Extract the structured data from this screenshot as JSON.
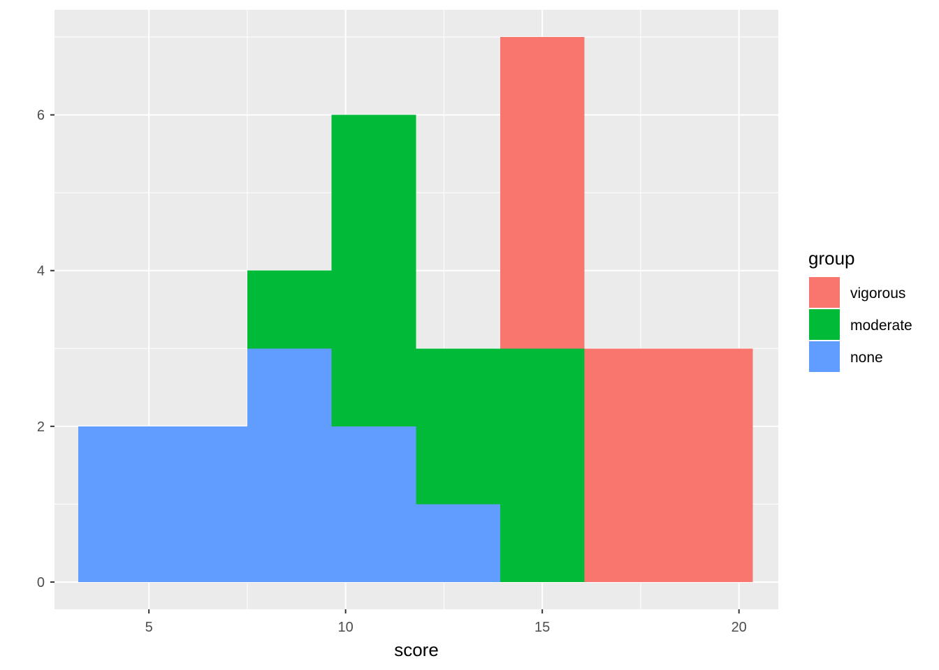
{
  "chart_data": {
    "type": "bar",
    "subtype": "stacked-histogram",
    "title": "",
    "xlabel": "score",
    "ylabel": "",
    "xlim": [
      2.6,
      21.0
    ],
    "ylim": [
      -0.35,
      7.35
    ],
    "xticks": [
      5,
      10,
      15,
      20
    ],
    "yticks": [
      0,
      2,
      4,
      6
    ],
    "grid": true,
    "legend": {
      "title": "group",
      "position": "right"
    },
    "bins": [
      [
        3.2,
        5.35
      ],
      [
        5.35,
        7.5
      ],
      [
        7.5,
        9.64
      ],
      [
        9.64,
        11.79
      ],
      [
        11.79,
        13.93
      ],
      [
        13.93,
        16.07
      ],
      [
        16.07,
        18.21
      ],
      [
        18.21,
        20.35
      ]
    ],
    "series": [
      {
        "name": "none",
        "color": "#619CFF",
        "values": [
          2,
          2,
          3,
          2,
          1,
          0,
          0,
          0
        ]
      },
      {
        "name": "moderate",
        "color": "#00BA38",
        "values": [
          0,
          0,
          1,
          4,
          2,
          3,
          0,
          0
        ]
      },
      {
        "name": "vigorous",
        "color": "#F8766D",
        "values": [
          0,
          0,
          0,
          0,
          0,
          4,
          3,
          3
        ]
      }
    ],
    "legend_order": [
      "vigorous",
      "moderate",
      "none"
    ]
  }
}
